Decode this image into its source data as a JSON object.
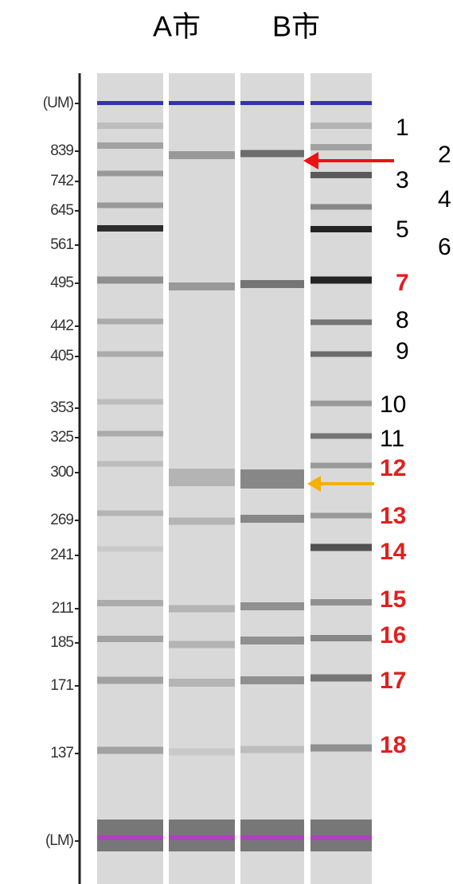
{
  "header": {
    "lanes": [
      "A市",
      "B市"
    ]
  },
  "axis": {
    "labels": [
      "(UM)",
      "839",
      "742",
      "645",
      "561",
      "495",
      "442",
      "405",
      "353",
      "325",
      "300",
      "269",
      "241",
      "211",
      "185",
      "171",
      "137",
      "(LM)"
    ]
  },
  "band_labels": [
    {
      "text": "1",
      "color": "#000000"
    },
    {
      "text": "2",
      "color": "#000000"
    },
    {
      "text": "3",
      "color": "#000000"
    },
    {
      "text": "4",
      "color": "#000000"
    },
    {
      "text": "5",
      "color": "#000000"
    },
    {
      "text": "6",
      "color": "#000000"
    },
    {
      "text": "7",
      "color": "#e02020"
    },
    {
      "text": "8",
      "color": "#000000"
    },
    {
      "text": "9",
      "color": "#000000"
    },
    {
      "text": "10",
      "color": "#000000"
    },
    {
      "text": "11",
      "color": "#000000"
    },
    {
      "text": "12",
      "color": "#e02020"
    },
    {
      "text": "13",
      "color": "#e02020"
    },
    {
      "text": "14",
      "color": "#e02020"
    },
    {
      "text": "15",
      "color": "#e02020"
    },
    {
      "text": "16",
      "color": "#e02020"
    },
    {
      "text": "17",
      "color": "#e02020"
    },
    {
      "text": "18",
      "color": "#e02020"
    }
  ]
}
